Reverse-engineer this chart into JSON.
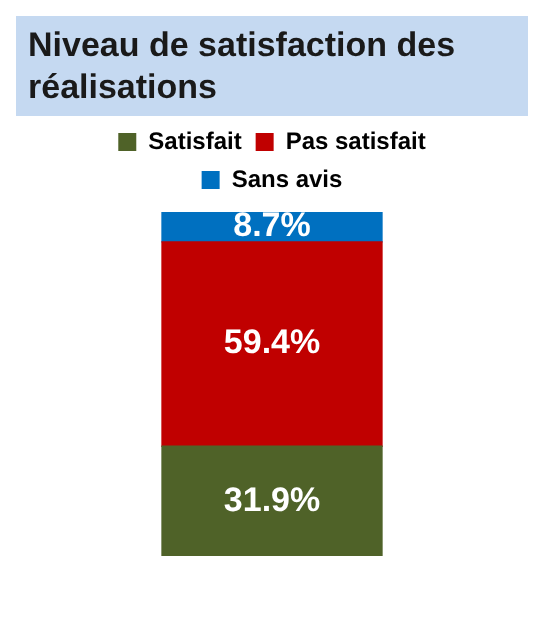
{
  "chart_data": {
    "type": "bar",
    "title": "Niveau de satisfaction des réalisations",
    "categories": [
      null
    ],
    "stacked": true,
    "legend": "top",
    "series": [
      {
        "name": "Satisfait",
        "color": "#4f6228",
        "values": [
          31.9
        ],
        "value_labels": [
          "31.9%"
        ]
      },
      {
        "name": "Pas satisfait",
        "color": "#c00000",
        "values": [
          59.4
        ],
        "value_labels": [
          "59.4%"
        ]
      },
      {
        "name": "Sans avis",
        "color": "#0070c0",
        "values": [
          8.7
        ],
        "value_labels": [
          "8.7%"
        ]
      }
    ]
  }
}
